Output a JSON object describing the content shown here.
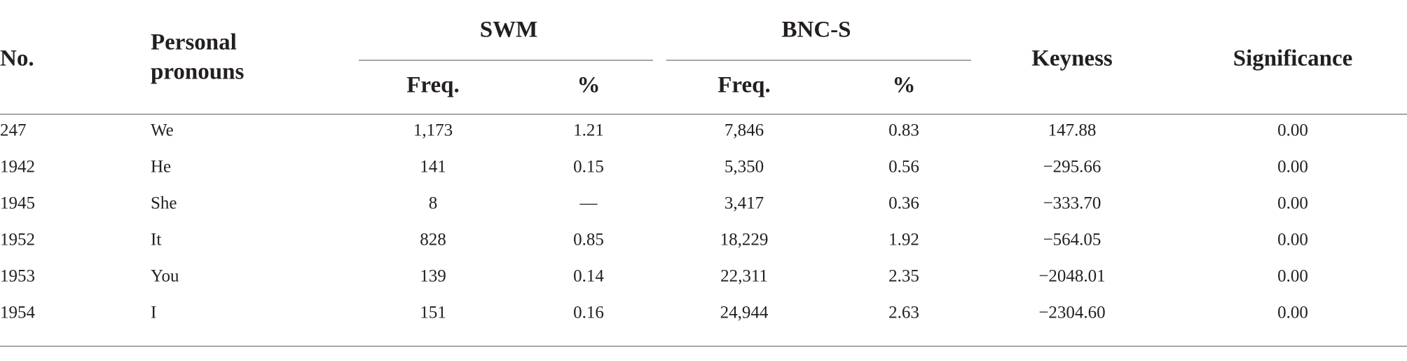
{
  "table": {
    "headers": {
      "no": "No.",
      "pronouns": [
        "Personal",
        "pronouns"
      ],
      "swm": "SWM",
      "bnc": "BNC-S",
      "freq1": "Freq.",
      "pct1": "%",
      "freq2": "Freq.",
      "pct2": "%",
      "keyness": "Keyness",
      "significance": "Significance"
    },
    "rows": [
      [
        "247",
        "We",
        "1,173",
        "1.21",
        "7,846",
        "0.83",
        "147.88",
        "0.00"
      ],
      [
        "1942",
        "He",
        "141",
        "0.15",
        "5,350",
        "0.56",
        "−295.66",
        "0.00"
      ],
      [
        "1945",
        "She",
        "8",
        "—",
        "3,417",
        "0.36",
        "−333.70",
        "0.00"
      ],
      [
        "1952",
        "It",
        "828",
        "0.85",
        "18,229",
        "1.92",
        "−564.05",
        "0.00"
      ],
      [
        "1953",
        "You",
        "139",
        "0.14",
        "22,311",
        "2.35",
        "−2048.01",
        "0.00"
      ],
      [
        "1954",
        "I",
        "151",
        "0.16",
        "24,944",
        "2.63",
        "−2304.60",
        "0.00"
      ]
    ]
  }
}
